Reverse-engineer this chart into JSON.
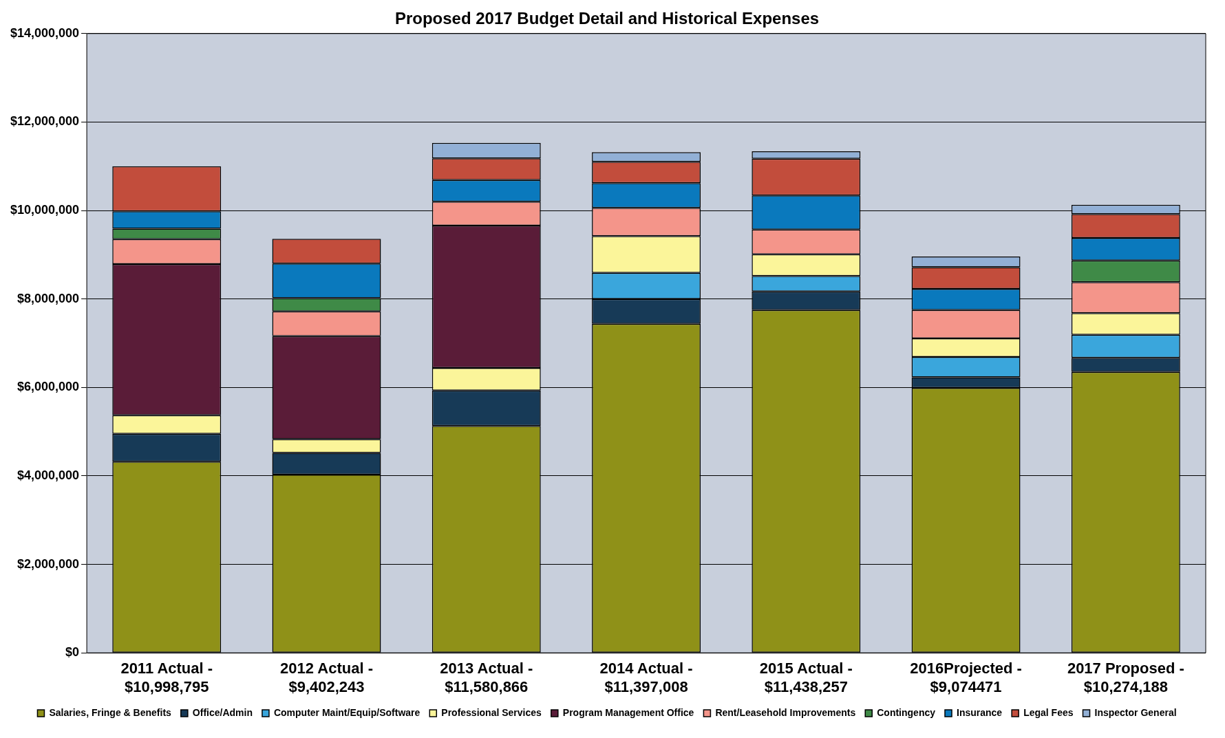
{
  "chart_data": {
    "type": "bar",
    "title": "Proposed 2017 Budget Detail and Historical Expenses",
    "categories": [
      "2011 Actual - $10,998,795",
      "2012 Actual - $9,402,243",
      "2013 Actual - $11,580,866",
      "2014 Actual - $11,397,008",
      "2015 Actual - $11,438,257",
      "2016Projected - $9,074471",
      "2017 Proposed - $10,274,188"
    ],
    "stacked": true,
    "series": [
      {
        "name": "Salaries, Fringe & Benefits",
        "color": "#8f9118",
        "values": [
          4320000,
          4030000,
          5130000,
          7440000,
          7750000,
          5990000,
          6350000
        ]
      },
      {
        "name": "Office/Admin",
        "color": "#173a57",
        "values": [
          630000,
          490000,
          800000,
          560000,
          420000,
          240000,
          320000
        ]
      },
      {
        "name": "Computer Maint/Equip/Software",
        "color": "#3aa6dc",
        "values": [
          null,
          null,
          null,
          590000,
          350000,
          460000,
          520000
        ]
      },
      {
        "name": "Professional Services",
        "color": "#fbf59a",
        "values": [
          420000,
          310000,
          510000,
          830000,
          490000,
          420000,
          490000
        ]
      },
      {
        "name": "Program Management Office",
        "color": "#5a1c38",
        "values": [
          3420000,
          2330000,
          3220000,
          null,
          null,
          null,
          null
        ]
      },
      {
        "name": "Rent/Leasehold Improvements",
        "color": "#f4958a",
        "values": [
          560000,
          560000,
          540000,
          640000,
          560000,
          640000,
          700000
        ]
      },
      {
        "name": "Contingency",
        "color": "#3f8a47",
        "values": [
          240000,
          300000,
          null,
          null,
          null,
          null,
          490000
        ]
      },
      {
        "name": "Insurance",
        "color": "#0a79bd",
        "values": [
          390000,
          780000,
          490000,
          560000,
          770000,
          480000,
          510000
        ]
      },
      {
        "name": "Legal Fees",
        "color": "#c24d3c",
        "values": [
          1020000,
          560000,
          490000,
          480000,
          830000,
          490000,
          540000
        ]
      },
      {
        "name": "Inspector General",
        "color": "#92b0d6",
        "values": [
          null,
          null,
          350000,
          220000,
          170000,
          240000,
          210000
        ]
      }
    ],
    "ylim": [
      0,
      14000000
    ],
    "yticks": [
      {
        "value": 0,
        "label": "$0"
      },
      {
        "value": 2000000,
        "label": "$2,000,000"
      },
      {
        "value": 4000000,
        "label": "$4,000,000"
      },
      {
        "value": 6000000,
        "label": "$6,000,000"
      },
      {
        "value": 8000000,
        "label": "$8,000,000"
      },
      {
        "value": 10000000,
        "label": "$10,000,000"
      },
      {
        "value": 12000000,
        "label": "$12,000,000"
      },
      {
        "value": 14000000,
        "label": "$14,000,000"
      }
    ],
    "grid": "y",
    "legend": "bottom"
  }
}
